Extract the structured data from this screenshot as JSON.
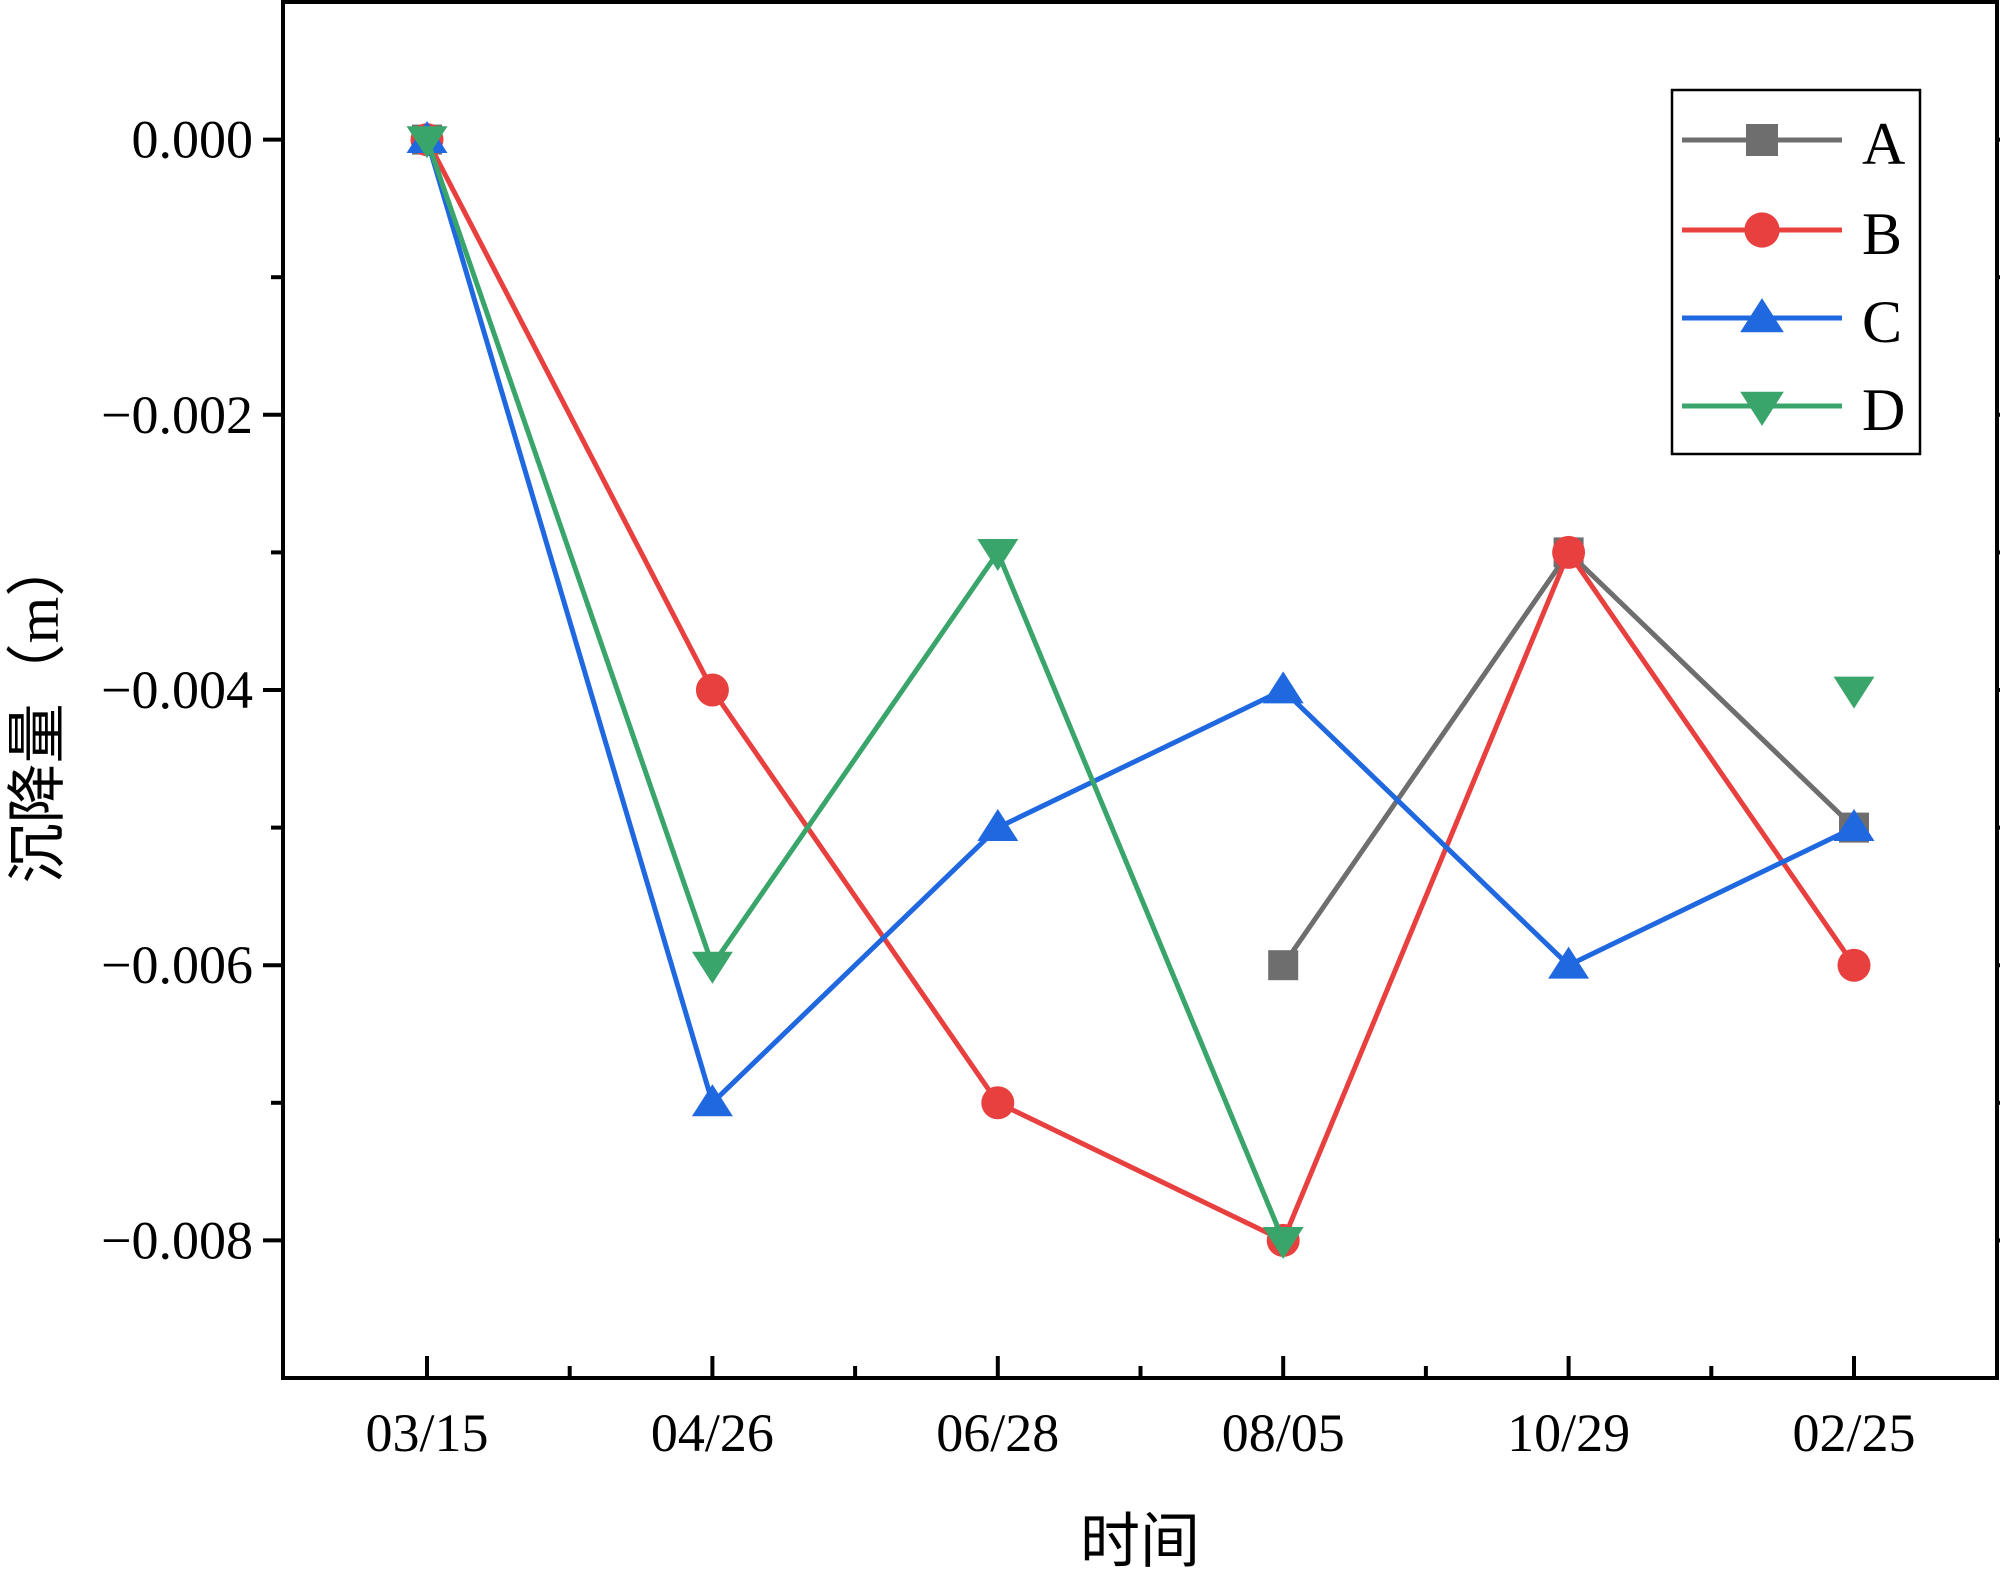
{
  "chart_data": {
    "type": "line",
    "title": "",
    "xlabel": "时间",
    "ylabel": "沉降量（m）",
    "categories": [
      "03/15",
      "04/26",
      "06/28",
      "08/05",
      "10/29",
      "02/25"
    ],
    "ylim": [
      -0.009,
      0.001
    ],
    "yticks": [
      0.0,
      -0.002,
      -0.004,
      -0.006,
      -0.008
    ],
    "ytick_labels": [
      "0.000",
      "−0.002",
      "−0.004",
      "−0.006",
      "−0.008"
    ],
    "grid": false,
    "legend_position": "top-right",
    "series": [
      {
        "name": "A",
        "color": "#6e6e6e",
        "marker": "square",
        "values": [
          0.0,
          null,
          null,
          -0.006,
          -0.003,
          -0.005
        ],
        "connect_from_index": 3
      },
      {
        "name": "B",
        "color": "#e8403f",
        "marker": "circle",
        "values": [
          0.0,
          -0.004,
          -0.007,
          -0.008,
          -0.003,
          -0.006
        ],
        "connect_from_index": 0
      },
      {
        "name": "C",
        "color": "#1f68e0",
        "marker": "triangle-up",
        "values": [
          0.0,
          -0.007,
          -0.005,
          -0.004,
          -0.006,
          -0.005
        ],
        "connect_from_index": 0
      },
      {
        "name": "D",
        "color": "#3aa56a",
        "marker": "triangle-down",
        "values": [
          0.0,
          -0.006,
          -0.003,
          -0.008,
          null,
          -0.004
        ],
        "connect_from_index": 0,
        "connect_to_index": 3
      }
    ]
  }
}
